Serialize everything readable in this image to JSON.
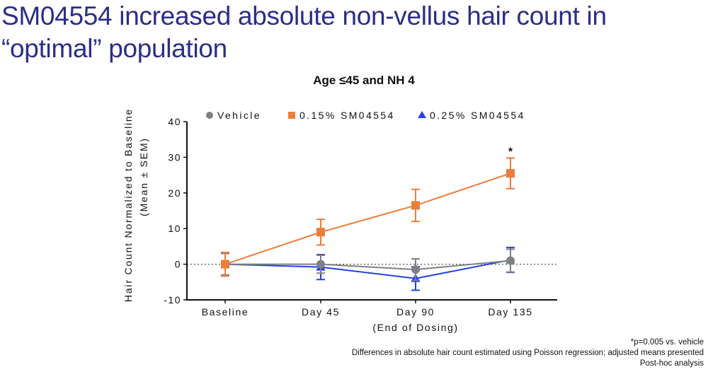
{
  "slide": {
    "title_line1": "SM04554 increased absolute non-vellus hair count in",
    "title_line2": "“optimal” population"
  },
  "footnotes": [
    "*p=0.005 vs. vehicle",
    "Differences in absolute hair count estimated using Poisson regression; adjusted means presented",
    "Post-hoc analysis"
  ],
  "colors": {
    "title": "#2b2e86",
    "vehicle": "#808080",
    "sm015": "#ed7d3a",
    "sm025": "#2341e6"
  },
  "chart_data": {
    "type": "line",
    "title": "Age ≤45 and NH 4",
    "xlabel": "",
    "ylabel_line1": "Hair Count Normalized to Baseline",
    "ylabel_line2": "(Mean ± SEM)",
    "categories": [
      "Baseline",
      "Day 45",
      "Day 90",
      "Day 135"
    ],
    "category_sublabels": [
      "",
      "",
      "(End of Dosing)",
      ""
    ],
    "ylim": [
      -10,
      40
    ],
    "yticks": [
      -10,
      0,
      10,
      20,
      30,
      40
    ],
    "reference_line": {
      "y": 0,
      "style": "dotted"
    },
    "legend_position": "top",
    "series": [
      {
        "name": "Vehicle",
        "marker": "circle",
        "color": "#808080",
        "values": [
          0,
          0,
          -1.5,
          1
        ],
        "errors": [
          3,
          2.5,
          3,
          3.2
        ]
      },
      {
        "name": "0.15% SM04554",
        "marker": "square",
        "color": "#ed7d3a",
        "values": [
          0,
          9,
          16.5,
          25.5
        ],
        "errors": [
          3.3,
          3.6,
          4.5,
          4.3
        ]
      },
      {
        "name": "0.25% SM04554",
        "marker": "triangle",
        "color": "#2341e6",
        "values": [
          0,
          -0.8,
          -4,
          1.2
        ],
        "errors": [
          3.3,
          3.5,
          3.3,
          3.5
        ]
      }
    ],
    "annotations": [
      {
        "text": "*",
        "series": "0.15% SM04554",
        "category": "Day 135"
      }
    ]
  }
}
